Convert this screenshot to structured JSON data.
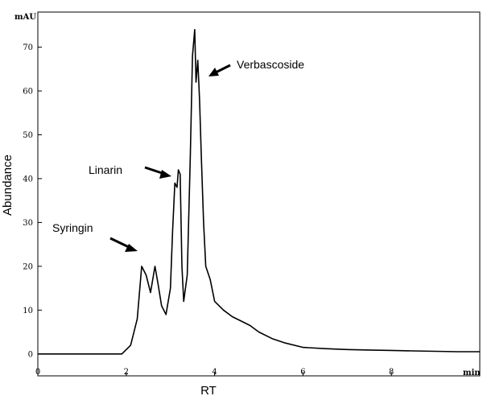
{
  "chart_data": {
    "type": "line",
    "title": "",
    "xlabel": "RT",
    "ylabel": "Abundance",
    "x_unit": "min",
    "y_unit": "mAU",
    "xlim": [
      0,
      10
    ],
    "ylim": [
      -5,
      78
    ],
    "x_ticks": [
      0,
      2,
      4,
      6,
      8
    ],
    "y_ticks": [
      0,
      10,
      20,
      30,
      40,
      50,
      60,
      70
    ],
    "grid": false,
    "series": [
      {
        "x": [
          0,
          1.9,
          2.1,
          2.25,
          2.35,
          2.45,
          2.55,
          2.65,
          2.72,
          2.8,
          2.9,
          3.0,
          3.05,
          3.1,
          3.15,
          3.18,
          3.22,
          3.26,
          3.3,
          3.38,
          3.45,
          3.5,
          3.55,
          3.58,
          3.62,
          3.66,
          3.7,
          3.75,
          3.8,
          3.9,
          4.0,
          4.2,
          4.4,
          4.6,
          4.8,
          5.0,
          5.3,
          5.6,
          6.0,
          6.5,
          7.0,
          7.5,
          8.0,
          8.5,
          9.0,
          9.5,
          10.0
        ],
        "y": [
          0,
          0,
          2,
          8,
          20,
          18,
          14,
          20,
          16,
          11,
          9,
          15,
          28,
          39,
          38,
          42,
          41,
          20,
          12,
          18,
          45,
          68,
          74,
          62,
          67,
          58,
          45,
          30,
          20,
          17,
          12,
          10,
          8.5,
          7.5,
          6.5,
          5,
          3.5,
          2.5,
          1.5,
          1.2,
          1.0,
          0.9,
          0.8,
          0.7,
          0.6,
          0.5,
          0.5
        ]
      }
    ],
    "annotations": [
      {
        "text": "Syringin",
        "x": 2.4,
        "y": 20
      },
      {
        "text": "Linarin",
        "x": 3.2,
        "y": 41
      },
      {
        "text": "Verbascoside",
        "x": 3.8,
        "y": 66
      }
    ]
  }
}
